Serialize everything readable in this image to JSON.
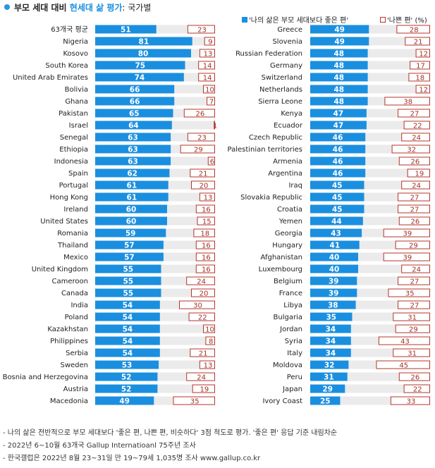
{
  "title": {
    "main": "부모 세대 대비",
    "highlight": "현세대 삶 평가",
    "sub": ": 국가별"
  },
  "legend": [
    {
      "label": "'나의 삶은 부모 세대보다 좋은 편'",
      "color": "#1a8fe0"
    },
    {
      "label": "'나쁜 편' (%)",
      "color": "#b5342b"
    }
  ],
  "notes": [
    "- 나의 삶은 전반적으로 부모 세대보다 '좋은 편, 나쁜 편, 비슷하다' 3점 척도로 평가. '좋은 편' 응답 기준 내림차순",
    "- 2022년 6~10월 63개국 Gallup Internatioanl 75주년 조사",
    "- 한국갤럽은 2022년 8월 23~31일 만 19~79세 1,035명 조사 www.gallup.co.kr"
  ],
  "colors": {
    "good": "#1a8fe0",
    "track": "#ebebeb",
    "bad_border": "#b5342b",
    "bad_text": "#a33227"
  },
  "chart_data": [
    {
      "type": "bar",
      "categories": [
        "63개국 평균",
        "Nigeria",
        "Kosovo",
        "South Korea",
        "United Arab Emirates",
        "Bolivia",
        "Ghana",
        "Pakistan",
        "Israel",
        "Senegal",
        "Ethiopia",
        "Indonesia",
        "Spain",
        "Portugal",
        "Hong Kong",
        "Ireland",
        "United States",
        "Romania",
        "Thailand",
        "Mexico",
        "United Kingdom",
        "Cameroon",
        "Canada",
        "India",
        "Poland",
        "Kazakhstan",
        "Philippines",
        "Serbia",
        "Sweden",
        "Bosnia and Herzegovina",
        "Austria",
        "Macedonia"
      ],
      "series": [
        {
          "name": "'나의 삶은 부모 세대보다 좋은 편'",
          "values": [
            51,
            81,
            80,
            75,
            74,
            66,
            66,
            65,
            64,
            63,
            63,
            63,
            62,
            61,
            61,
            60,
            60,
            59,
            57,
            57,
            55,
            55,
            55,
            54,
            54,
            54,
            54,
            54,
            53,
            52,
            52,
            49
          ]
        },
        {
          "name": "'나쁜 편' (%)",
          "values": [
            23,
            9,
            13,
            14,
            14,
            10,
            7,
            26,
            1,
            23,
            29,
            6,
            21,
            20,
            13,
            16,
            15,
            18,
            16,
            16,
            16,
            24,
            20,
            30,
            22,
            10,
            8,
            21,
            13,
            24,
            19,
            35
          ]
        }
      ],
      "xlim": [
        0,
        100
      ]
    },
    {
      "type": "bar",
      "categories": [
        "Greece",
        "Slovenia",
        "Russian Federation",
        "Germany",
        "Switzerland",
        "Netherlands",
        "Sierra Leone",
        "Kenya",
        "Ecuador",
        "Czech Republic",
        "Palestinian territories",
        "Armenia",
        "Argentina",
        "Iraq",
        "Slovakia Republic",
        "Croatia",
        "Yemen",
        "Georgia",
        "Hungary",
        "Afghanistan",
        "Luxembourg",
        "Belgium",
        "France",
        "Libya",
        "Bulgaria",
        "Jordan",
        "Syria",
        "Italy",
        "Moldova",
        "Peru",
        "Japan",
        "Ivory Coast"
      ],
      "series": [
        {
          "name": "'나의 삶은 부모 세대보다 좋은 편'",
          "values": [
            49,
            49,
            48,
            48,
            48,
            48,
            48,
            47,
            47,
            46,
            46,
            46,
            46,
            45,
            45,
            45,
            44,
            43,
            41,
            40,
            40,
            39,
            39,
            38,
            35,
            34,
            34,
            34,
            32,
            31,
            29,
            25
          ]
        },
        {
          "name": "'나쁜 편' (%)",
          "values": [
            28,
            21,
            12,
            17,
            18,
            12,
            38,
            27,
            22,
            24,
            32,
            26,
            19,
            24,
            27,
            27,
            26,
            39,
            29,
            39,
            24,
            27,
            35,
            27,
            31,
            29,
            43,
            31,
            45,
            26,
            22,
            33
          ]
        }
      ],
      "xlim": [
        0,
        100
      ]
    }
  ]
}
